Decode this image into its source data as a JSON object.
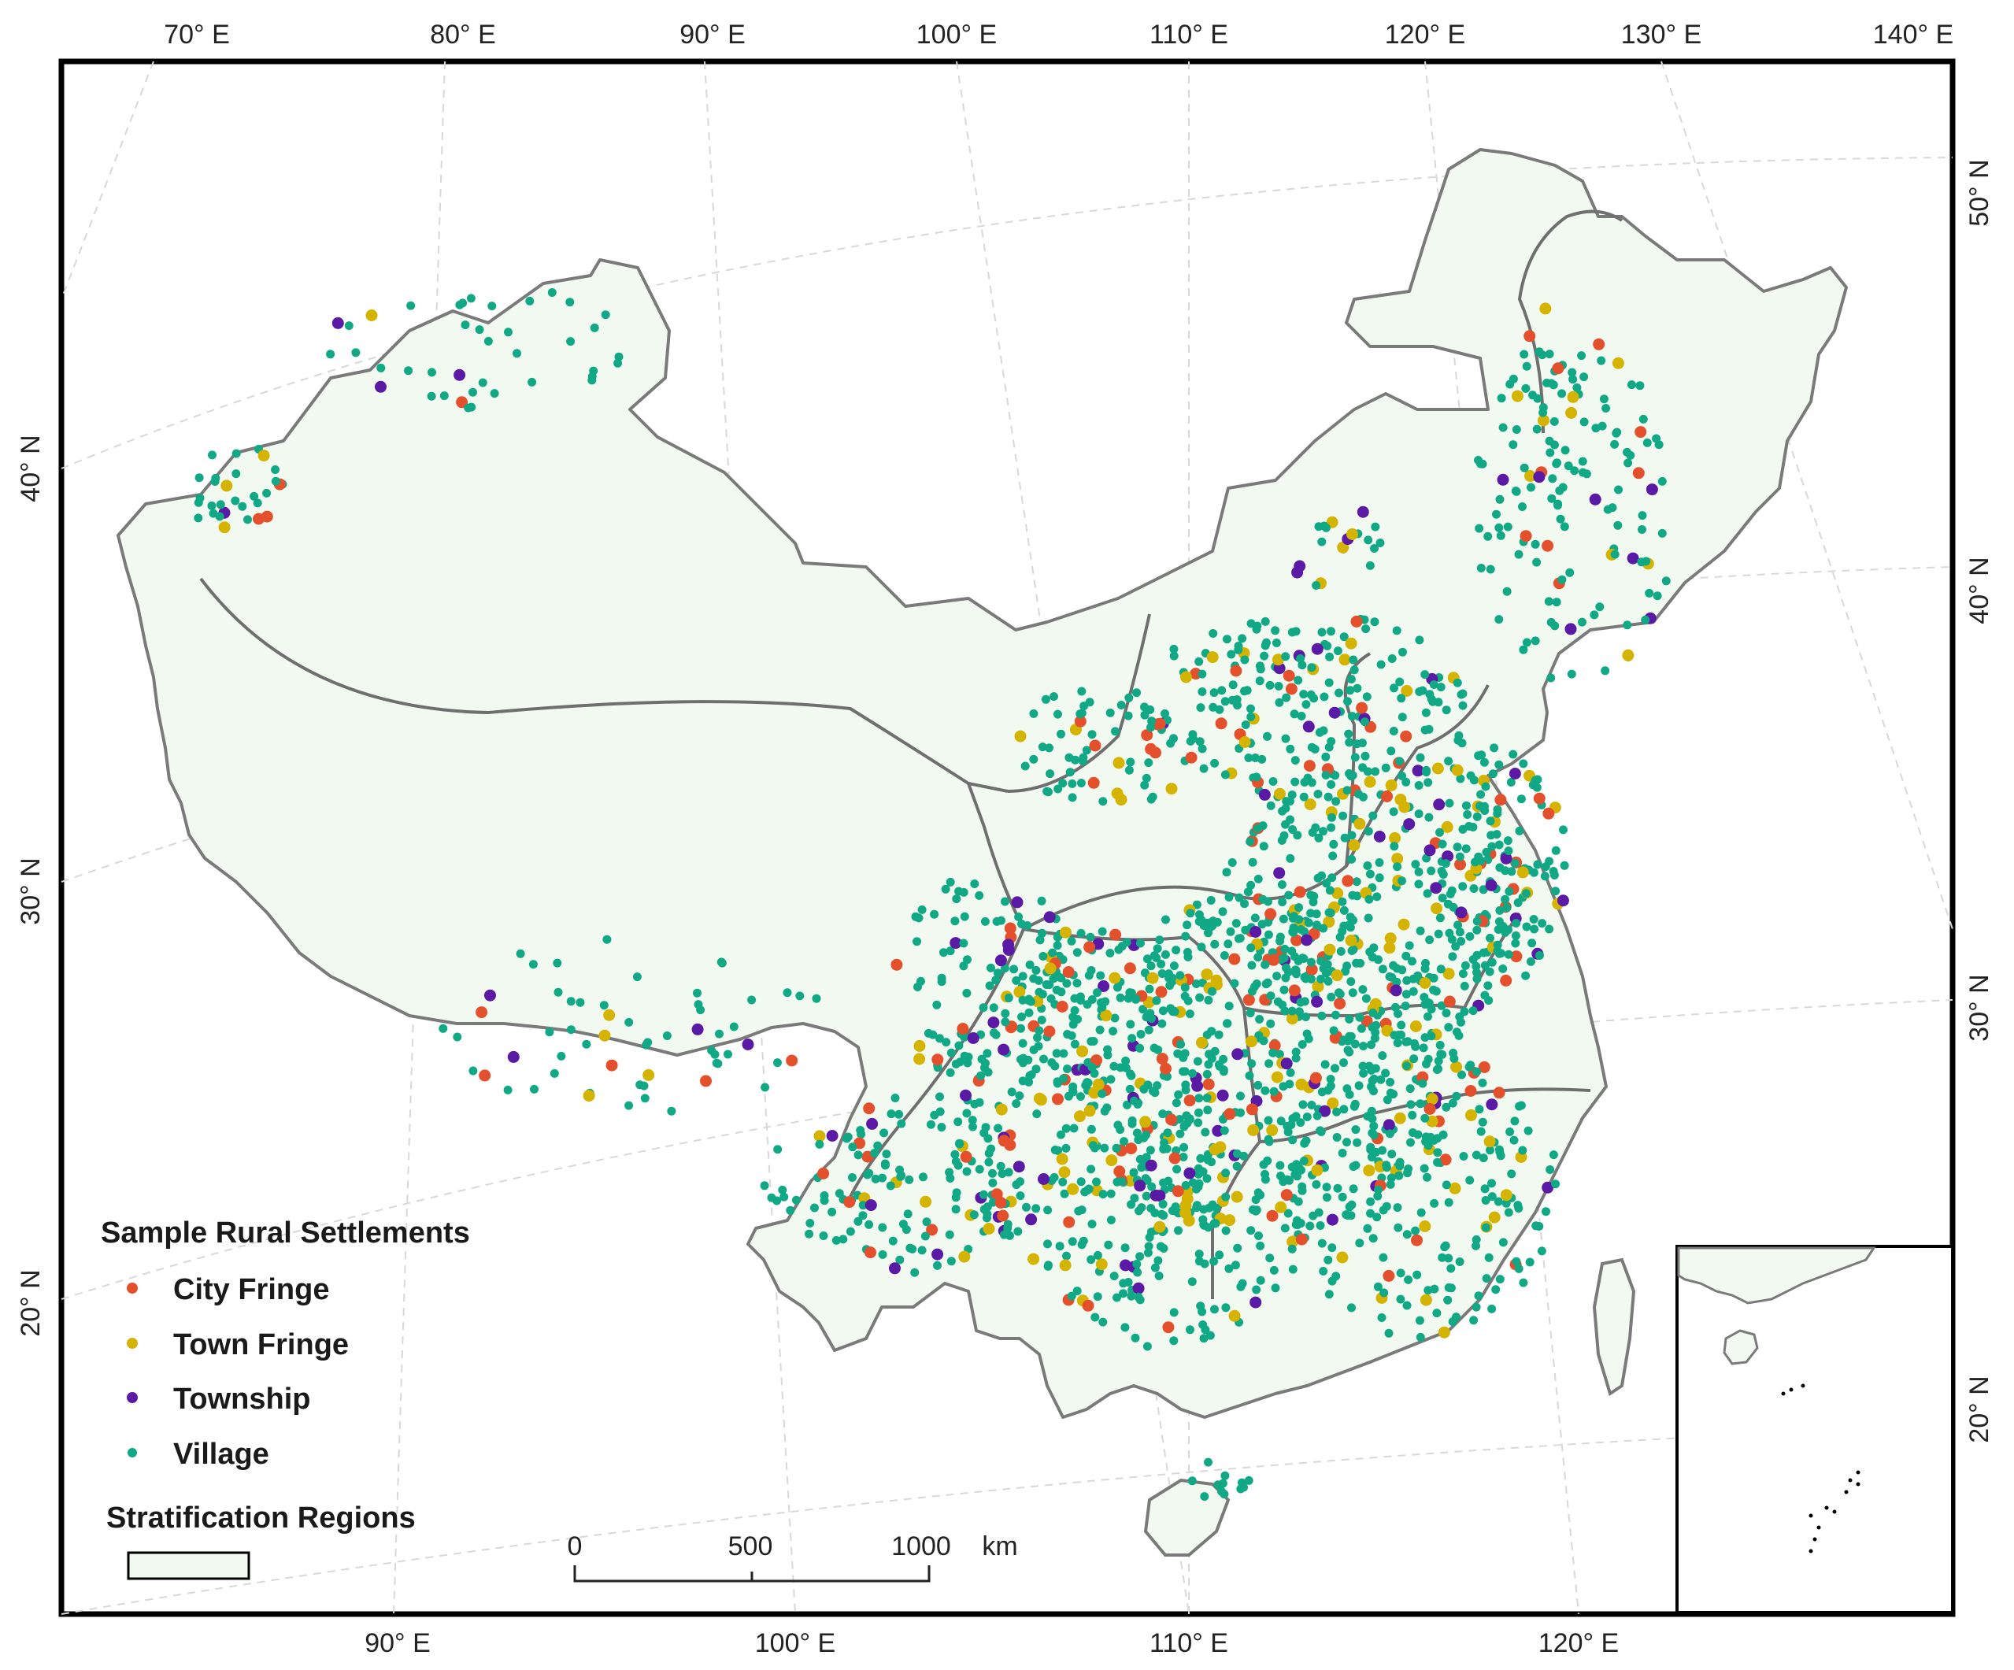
{
  "top_lon_labels": [
    "70° E",
    "80° E",
    "90° E",
    "100° E",
    "110° E",
    "120° E",
    "130° E",
    "140° E"
  ],
  "bottom_lon_labels": [
    "90° E",
    "100° E",
    "110° E",
    "120° E"
  ],
  "left_lat_labels": [
    "40° N",
    "30° N",
    "20° N"
  ],
  "right_lat_labels": [
    "50° N",
    "40° N",
    "30° N",
    "20° N"
  ],
  "legend": {
    "title": "Sample Rural Settlements",
    "items": [
      {
        "label": "City Fringe",
        "color": "#e4502c"
      },
      {
        "label": "Town Fringe",
        "color": "#d4b400"
      },
      {
        "label": "Township",
        "color": "#5a1aa6"
      },
      {
        "label": "Village",
        "color": "#11a886"
      }
    ],
    "regions_title": "Stratification  Regions",
    "regions_fill": "#f2f9f1"
  },
  "scale_bar": {
    "labels": [
      "0",
      "500",
      "1000"
    ],
    "unit": "km"
  },
  "colors": {
    "land_fill": "#f2f9f1",
    "boundary": "#7a7a7a",
    "frame": "#000000",
    "graticule": "#d8d8d8"
  }
}
